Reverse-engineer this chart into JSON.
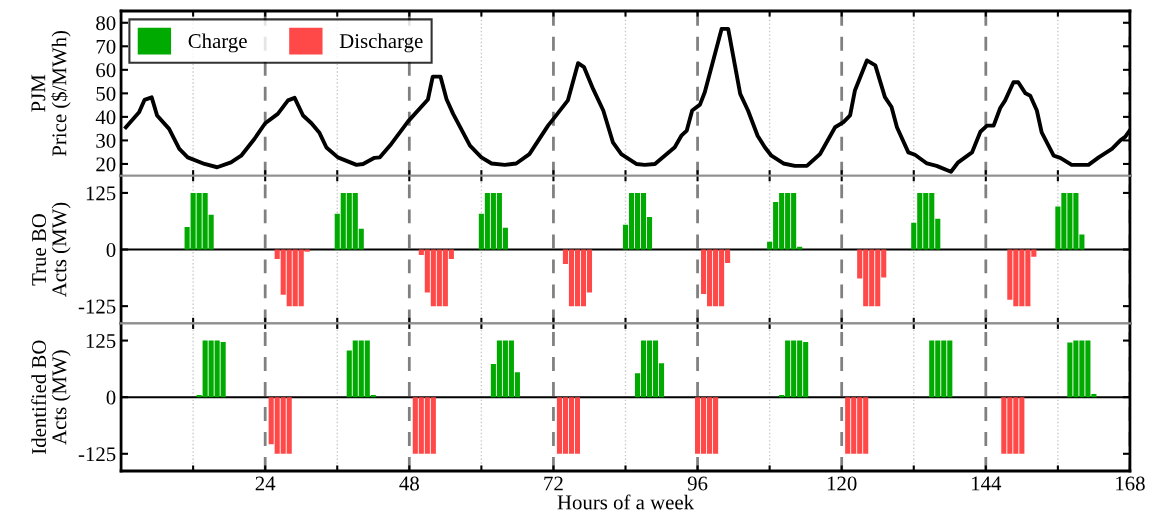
{
  "chart_data": [
    {
      "type": "line",
      "ylabel": "PJM\nPrice ($/MWh)",
      "xlim": [
        0,
        168
      ],
      "ylim": [
        15,
        85
      ],
      "yticks": [
        20,
        30,
        40,
        50,
        60,
        70,
        80
      ],
      "xticks": [
        {
          "value": 12,
          "label": null
        },
        24,
        {
          "value": 36,
          "label": null
        },
        48,
        {
          "value": 60,
          "label": null
        },
        72,
        {
          "value": 84,
          "label": null
        },
        96,
        {
          "value": 108,
          "label": null
        },
        120,
        {
          "value": 132,
          "label": null
        },
        144,
        {
          "value": 156,
          "label": null
        },
        168
      ],
      "tick_labels": "y",
      "grid": "x",
      "marker": "none",
      "line_style": "solid",
      "series": [
        {
          "color": "#000000",
          "x": [
            0.8,
            3,
            3.9,
            5.1,
            6,
            8,
            9.7,
            11.1,
            13.9,
            16,
            18.3,
            20,
            22.2,
            24,
            26.1,
            27.8,
            28.9,
            30.3,
            31.7,
            33,
            34.2,
            36.1,
            39.2,
            40.3,
            42.2,
            43.1,
            45,
            47.8,
            51.1,
            51.9,
            53.2,
            54.2,
            55.3,
            58.1,
            60,
            61.7,
            63.9,
            65.8,
            68,
            71.1,
            72.2,
            74.4,
            76.1,
            77.1,
            78.6,
            80.3,
            81.9,
            83.3,
            85.8,
            87.2,
            88.9,
            92.2,
            93.3,
            94.2,
            95.1,
            96.4,
            97.2,
            100,
            101.1,
            103.1,
            104.4,
            106,
            107.2,
            108.3,
            110.3,
            112.2,
            114.2,
            116.4,
            118.9,
            120.3,
            121.4,
            122.2,
            124.2,
            125.6,
            127.2,
            128.3,
            129.2,
            131.1,
            132.2,
            134.2,
            135.8,
            138.2,
            139.4,
            141.7,
            143.1,
            144.2,
            145.3,
            146.4,
            147.2,
            148.6,
            149.4,
            150.6,
            151.4,
            152.5,
            153.3,
            155.3,
            156.4,
            158.3,
            161.1,
            162.8,
            165,
            166.4,
            167.2,
            168
          ],
          "values": [
            35.6,
            42,
            47.2,
            48.3,
            40.6,
            34.9,
            26.4,
            22.8,
            20,
            18.6,
            20.7,
            23.5,
            30.6,
            37.3,
            41.3,
            47,
            48.1,
            40.6,
            37.3,
            33.4,
            27,
            22.8,
            19.6,
            20,
            22.6,
            22.8,
            28.5,
            38.1,
            47.4,
            57.1,
            57.1,
            47.5,
            41.3,
            27.8,
            22.8,
            20.2,
            19.6,
            20.2,
            24.2,
            36.3,
            39.8,
            47,
            62.8,
            61.1,
            51.9,
            42.7,
            29.2,
            24.2,
            20,
            19.6,
            20,
            27.1,
            32,
            34.2,
            42.7,
            45.2,
            50.5,
            77.4,
            77.4,
            49.8,
            42.7,
            32,
            27.1,
            23.5,
            20.2,
            19.2,
            19.2,
            24.2,
            35.6,
            37.8,
            40.6,
            51.2,
            64,
            61.9,
            48.4,
            44.2,
            35.6,
            24.9,
            23.9,
            20.2,
            19.2,
            16.7,
            20.7,
            24.9,
            33.7,
            36.3,
            36.3,
            43.8,
            46.9,
            54.7,
            54.7,
            50,
            49,
            42.7,
            33.4,
            23.5,
            22.6,
            19.6,
            19.6,
            22.8,
            26.4,
            30,
            31.5,
            34.3
          ]
        }
      ]
    },
    {
      "type": "bar",
      "ylabel": "True BO\nActs (MW)",
      "xlim": [
        0,
        168
      ],
      "ylim": [
        -163,
        163
      ],
      "yticks": [
        -125,
        0,
        125
      ],
      "xticks": [
        {
          "value": 12,
          "label": null
        },
        24,
        {
          "value": 36,
          "label": null
        },
        48,
        {
          "value": 60,
          "label": null
        },
        72,
        {
          "value": 84,
          "label": null
        },
        96,
        {
          "value": 108,
          "label": null
        },
        120,
        {
          "value": 132,
          "label": null
        },
        144,
        {
          "value": 156,
          "label": null
        },
        168
      ],
      "tick_labels": "y",
      "grid": "x",
      "legend": "top left",
      "ref_lines": [
        {
          "axis": "y",
          "value": 0,
          "color": "#000000"
        }
      ],
      "series": [
        {
          "name": "Charge",
          "color": "#00aa00",
          "x": [
            11,
            12,
            13,
            14,
            15,
            36,
            37,
            38,
            39,
            40,
            60,
            61,
            62,
            63,
            64,
            84,
            85,
            86,
            87,
            88,
            108,
            109,
            110,
            111,
            112,
            113,
            132,
            133,
            134,
            135,
            136,
            156,
            157,
            158,
            159,
            160
          ],
          "values": [
            50,
            125,
            125,
            125,
            77,
            79,
            125,
            125,
            125,
            46,
            79,
            125,
            125,
            125,
            48,
            55,
            125,
            125,
            125,
            72,
            17,
            105,
            125,
            125,
            125,
            6,
            59,
            125,
            125,
            125,
            68,
            95,
            125,
            125,
            125,
            33
          ]
        },
        {
          "name": "Discharge",
          "color": "#ff4848",
          "x": [
            26,
            27,
            28,
            29,
            30,
            31,
            50,
            51,
            52,
            53,
            54,
            55,
            74,
            75,
            76,
            77,
            78,
            97,
            98,
            99,
            100,
            101,
            123,
            124,
            125,
            126,
            127,
            148,
            149,
            150,
            151,
            152
          ],
          "values": [
            -21,
            -100,
            -125,
            -125,
            -125,
            -5,
            -12,
            -95,
            -125,
            -125,
            -125,
            -21,
            -32,
            -125,
            -125,
            -125,
            -95,
            -98,
            -125,
            -125,
            -125,
            -30,
            -64,
            -125,
            -125,
            -125,
            -62,
            -111,
            -125,
            -125,
            -125,
            -16
          ]
        }
      ]
    },
    {
      "type": "bar",
      "ylabel": "Identified BO\nActs (MW)",
      "xlabel": "Hours of a week",
      "xlim": [
        0,
        168
      ],
      "ylim": [
        -163,
        163
      ],
      "yticks": [
        -125,
        0,
        125
      ],
      "xticks": [
        {
          "value": 12,
          "label": null
        },
        24,
        {
          "value": 36,
          "label": null
        },
        48,
        {
          "value": 60,
          "label": null
        },
        72,
        {
          "value": 84,
          "label": null
        },
        96,
        {
          "value": 108,
          "label": null
        },
        120,
        {
          "value": 132,
          "label": null
        },
        144,
        {
          "value": 156,
          "label": null
        },
        168
      ],
      "grid": "x",
      "legend": "top left",
      "ref_lines": [
        {
          "axis": "y",
          "value": 0,
          "color": "#000000"
        }
      ],
      "series": [
        {
          "name": "Charge",
          "color": "#00aa00",
          "x": [
            13,
            14,
            15,
            16,
            17,
            38,
            39,
            40,
            41,
            42,
            62,
            63,
            64,
            65,
            66,
            86,
            87,
            88,
            89,
            90,
            110,
            111,
            112,
            113,
            114,
            135,
            136,
            137,
            138,
            158,
            159,
            160,
            161,
            162
          ],
          "values": [
            5,
            125,
            125,
            125,
            122,
            103,
            125,
            125,
            125,
            5,
            73,
            125,
            125,
            125,
            55,
            53,
            125,
            125,
            125,
            75,
            5,
            125,
            125,
            125,
            122,
            125,
            125,
            125,
            125,
            121,
            125,
            125,
            125,
            7
          ]
        },
        {
          "name": "Discharge",
          "color": "#ff4848",
          "x": [
            25,
            26,
            27,
            28,
            49,
            50,
            51,
            52,
            73,
            74,
            75,
            76,
            96,
            97,
            98,
            99,
            121,
            122,
            123,
            124,
            147,
            148,
            149,
            150
          ],
          "values": [
            -104,
            -125,
            -125,
            -125,
            -125,
            -125,
            -125,
            -125,
            -125,
            -125,
            -125,
            -125,
            -125,
            -125,
            -125,
            -125,
            -125,
            -125,
            -125,
            -125,
            -125,
            -125,
            -125,
            -125
          ]
        }
      ]
    }
  ]
}
